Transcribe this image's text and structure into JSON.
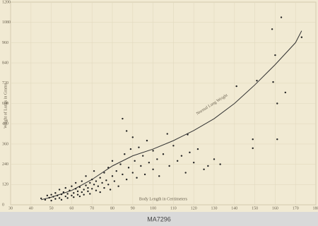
{
  "chart_data": {
    "type": "scatter",
    "y_label": "Weight of Lungs in Grams",
    "x_label": "Body Length in Centimeters",
    "xlim": [
      30,
      180
    ],
    "xticks": [
      30,
      40,
      50,
      60,
      70,
      80,
      90,
      100,
      110,
      120,
      130,
      140,
      150,
      160,
      170,
      180
    ],
    "ylim": [
      0,
      1200
    ],
    "yticks": [
      0,
      120,
      240,
      360,
      480,
      600,
      720,
      840,
      960,
      1080,
      1200
    ],
    "grid": true,
    "color": "#222222",
    "x": [
      45,
      47,
      48,
      49,
      50,
      50,
      51,
      52,
      52,
      53,
      54,
      54,
      55,
      55,
      56,
      57,
      57,
      58,
      58,
      59,
      60,
      60,
      61,
      61,
      62,
      62,
      63,
      63,
      64,
      64,
      65,
      65,
      66,
      66,
      67,
      67,
      68,
      68,
      69,
      69,
      70,
      70,
      71,
      71,
      72,
      72,
      73,
      74,
      74,
      75,
      76,
      76,
      77,
      78,
      78,
      79,
      80,
      80,
      81,
      82,
      83,
      84,
      85,
      85,
      86,
      87,
      87,
      88,
      89,
      90,
      90,
      91,
      92,
      93,
      94,
      95,
      96,
      97,
      98,
      100,
      100,
      102,
      103,
      105,
      107,
      108,
      110,
      112,
      114,
      116,
      117,
      118,
      120,
      122,
      125,
      127,
      130,
      133,
      149,
      149,
      151,
      141,
      159,
      158.5,
      160,
      161,
      161,
      163,
      165,
      173
    ],
    "y": [
      38,
      30,
      55,
      42,
      25,
      60,
      48,
      35,
      70,
      55,
      40,
      90,
      62,
      30,
      75,
      50,
      100,
      65,
      40,
      85,
      55,
      110,
      70,
      45,
      95,
      130,
      60,
      80,
      105,
      50,
      75,
      140,
      90,
      60,
      115,
      170,
      80,
      100,
      130,
      65,
      95,
      150,
      120,
      200,
      85,
      140,
      110,
      160,
      75,
      130,
      190,
      100,
      145,
      120,
      220,
      90,
      170,
      260,
      140,
      200,
      110,
      240,
      180,
      510,
      300,
      437,
      150,
      220,
      330,
      190,
      400,
      260,
      160,
      340,
      230,
      290,
      180,
      380,
      250,
      210,
      320,
      270,
      170,
      300,
      420,
      230,
      350,
      260,
      290,
      190,
      416,
      310,
      250,
      330,
      210,
      230,
      270,
      240,
      388,
      335,
      735,
      702,
      727,
      1040,
      886,
      388,
      600,
      1110,
      665,
      992
    ],
    "curve": {
      "name": "Normal Lung Weight",
      "color": "#333333",
      "x": [
        45,
        50,
        60,
        70,
        80,
        90,
        100,
        110,
        120,
        130,
        140,
        150,
        160,
        170,
        173
      ],
      "y": [
        30,
        45,
        85,
        150,
        230,
        290,
        330,
        380,
        440,
        510,
        600,
        710,
        830,
        960,
        1030
      ]
    },
    "image_id": "MA7296"
  }
}
